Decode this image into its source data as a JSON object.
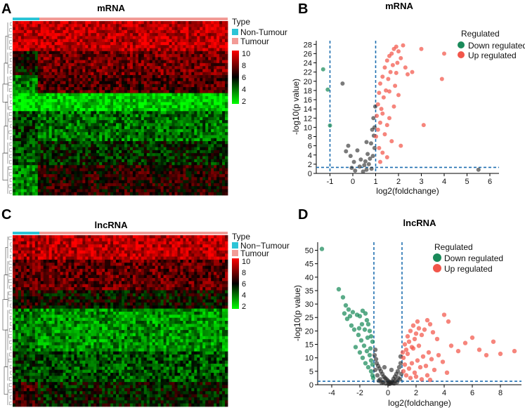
{
  "panel_letters": {
    "a": "A",
    "b": "B",
    "c": "C",
    "d": "D"
  },
  "colors": {
    "non_tumour": "#2cc4d6",
    "tumour": "#f29b96",
    "down": "#1a8a5a",
    "up": "#f2564a",
    "ns": "#222222",
    "threshold": "#1f6fb0"
  },
  "chart_data": [
    {
      "type": "heatmap",
      "panel": "A",
      "title": "mRNA",
      "legend_type_title": "Type",
      "legend_groups": [
        "Non-Tumour",
        "Tumour"
      ],
      "colorbar_ticks": [
        "10",
        "8",
        "6",
        "4",
        "2"
      ],
      "colorbar_range": [
        1,
        10
      ],
      "colorbar_colors": [
        "#ff0000",
        "#000000",
        "#00ff00"
      ],
      "n_non_tumour_columns": 9,
      "n_tumour_columns": 68,
      "row_blocks": [
        {
          "rows": 10,
          "non_tumour_level": 9.0,
          "tumour_level": 8.8
        },
        {
          "rows": 8,
          "non_tumour_level": 5.5,
          "tumour_level": 7.5
        },
        {
          "rows": 6,
          "non_tumour_level": 3.5,
          "tumour_level": 6.8
        },
        {
          "rows": 6,
          "non_tumour_level": 1.6,
          "tumour_level": 1.8
        },
        {
          "rows": 10,
          "non_tumour_level": 4.5,
          "tumour_level": 3.5
        },
        {
          "rows": 8,
          "non_tumour_level": 4.2,
          "tumour_level": 4.8
        },
        {
          "rows": 10,
          "non_tumour_level": 3.2,
          "tumour_level": 6.2
        }
      ]
    },
    {
      "type": "scatter",
      "panel": "B",
      "title": "mRNA",
      "xlabel": "log2(foldchange)",
      "ylabel": "-log10(p value)",
      "xlim": [
        -1.6,
        6.4
      ],
      "ylim": [
        0,
        28.8
      ],
      "xticks": [
        "-1",
        "0",
        "1",
        "2",
        "3",
        "4",
        "5",
        "6"
      ],
      "yticks": [
        "0",
        "2",
        "4",
        "6",
        "8",
        "10",
        "12",
        "14",
        "16",
        "18",
        "20",
        "22",
        "24",
        "26",
        "28"
      ],
      "thresholds": {
        "x": [
          -1,
          1
        ],
        "y": 1.3
      },
      "legend_title": "Regulated",
      "legend_items": [
        "Down regulated",
        "Up regulated"
      ],
      "series": [
        {
          "name": "Down regulated",
          "points": [
            [
              -1.3,
              22.6
            ],
            [
              -1.1,
              18.2
            ],
            [
              -1.0,
              10.4
            ]
          ]
        },
        {
          "name": "Not significant",
          "points": [
            [
              -0.45,
              19.5
            ],
            [
              -0.2,
              6.0
            ],
            [
              -0.3,
              4.8
            ],
            [
              -0.1,
              3.8
            ],
            [
              0.05,
              2.5
            ],
            [
              0.2,
              5.0
            ],
            [
              0.35,
              3.0
            ],
            [
              0.5,
              1.8
            ],
            [
              0.6,
              0.8
            ],
            [
              0.65,
              4.2
            ],
            [
              0.7,
              2.0
            ],
            [
              0.8,
              6.5
            ],
            [
              0.85,
              9.5
            ],
            [
              0.9,
              12.0
            ],
            [
              0.95,
              5.5
            ],
            [
              0.75,
              3.2
            ],
            [
              0.1,
              0.6
            ],
            [
              0.45,
              0.4
            ],
            [
              0.95,
              10.0
            ],
            [
              0.98,
              14.5
            ],
            [
              0.3,
              1.5
            ],
            [
              0.55,
              2.6
            ],
            [
              0.92,
              8.2
            ],
            [
              0.88,
              3.8
            ],
            [
              -0.05,
              1.2
            ],
            [
              0.6,
              6.8
            ],
            [
              0.82,
              1.0
            ],
            [
              5.5,
              0.8
            ]
          ]
        },
        {
          "name": "Up regulated",
          "points": [
            [
              1.02,
              8.0
            ],
            [
              1.05,
              12.5
            ],
            [
              1.1,
              15.0
            ],
            [
              1.15,
              17.5
            ],
            [
              1.2,
              19.5
            ],
            [
              1.25,
              14.0
            ],
            [
              1.3,
              21.0
            ],
            [
              1.35,
              16.5
            ],
            [
              1.4,
              23.0
            ],
            [
              1.45,
              18.0
            ],
            [
              1.5,
              24.5
            ],
            [
              1.55,
              20.5
            ],
            [
              1.6,
              25.5
            ],
            [
              1.65,
              22.0
            ],
            [
              1.7,
              26.0
            ],
            [
              1.75,
              23.5
            ],
            [
              1.8,
              27.0
            ],
            [
              1.85,
              19.0
            ],
            [
              1.9,
              27.5
            ],
            [
              1.95,
              24.0
            ],
            [
              2.0,
              26.5
            ],
            [
              2.1,
              25.0
            ],
            [
              2.2,
              27.8
            ],
            [
              2.3,
              23.0
            ],
            [
              2.4,
              21.5
            ],
            [
              1.2,
              11.0
            ],
            [
              1.3,
              13.0
            ],
            [
              1.5,
              10.5
            ],
            [
              1.1,
              9.5
            ],
            [
              1.4,
              8.5
            ],
            [
              1.6,
              12.0
            ],
            [
              1.8,
              14.5
            ],
            [
              2.0,
              17.0
            ],
            [
              2.1,
              6.0
            ],
            [
              1.7,
              7.0
            ],
            [
              1.3,
              4.5
            ],
            [
              1.5,
              3.5
            ],
            [
              1.2,
              2.5
            ],
            [
              2.6,
              22.0
            ],
            [
              3.0,
              27.0
            ],
            [
              3.1,
              10.5
            ],
            [
              3.9,
              20.5
            ],
            [
              4.0,
              26.0
            ],
            [
              1.15,
              5.5
            ],
            [
              1.6,
              17.8
            ],
            [
              1.9,
              21.8
            ]
          ]
        }
      ]
    },
    {
      "type": "heatmap",
      "panel": "C",
      "title": "lncRNA",
      "legend_type_title": "Type",
      "legend_groups": [
        "Non−Tumour",
        "Tumour"
      ],
      "colorbar_ticks": [
        "10",
        "8",
        "6",
        "4",
        "2"
      ],
      "colorbar_range": [
        1,
        10
      ],
      "colorbar_colors": [
        "#ff0000",
        "#000000",
        "#00ff00"
      ],
      "n_non_tumour_columns": 9,
      "n_tumour_columns": 68,
      "row_blocks": [
        {
          "rows": 8,
          "non_tumour_level": 8.5,
          "tumour_level": 8.8
        },
        {
          "rows": 10,
          "non_tumour_level": 7.0,
          "tumour_level": 7.2
        },
        {
          "rows": 6,
          "non_tumour_level": 6.0,
          "tumour_level": 5.5
        },
        {
          "rows": 14,
          "non_tumour_level": 3.5,
          "tumour_level": 3.0
        },
        {
          "rows": 10,
          "non_tumour_level": 4.5,
          "tumour_level": 4.0
        },
        {
          "rows": 8,
          "non_tumour_level": 6.5,
          "tumour_level": 5.2
        }
      ]
    },
    {
      "type": "scatter",
      "panel": "D",
      "title": "lncRNA",
      "xlabel": "log2(foldchange)",
      "ylabel": "-log10(p value)",
      "xlim": [
        -5,
        9.5
      ],
      "ylim": [
        0,
        53
      ],
      "xticks": [
        "-4",
        "-2",
        "0",
        "2",
        "4",
        "6",
        "8"
      ],
      "yticks": [
        "0",
        "5",
        "10",
        "15",
        "20",
        "25",
        "30",
        "35",
        "40",
        "45",
        "50"
      ],
      "thresholds": {
        "x": [
          -1,
          1
        ],
        "y": 1.3
      },
      "legend_title": "Regulated",
      "legend_items": [
        "Down regulated",
        "Up regulated"
      ],
      "series": [
        {
          "name": "Down regulated",
          "points": [
            [
              -4.7,
              50.5
            ],
            [
              -3.5,
              35.5
            ],
            [
              -3.2,
              32.5
            ],
            [
              -3.0,
              29.5
            ],
            [
              -2.8,
              28.0
            ],
            [
              -2.5,
              27.0
            ],
            [
              -2.2,
              26.0
            ],
            [
              -2.0,
              25.5
            ],
            [
              -1.8,
              27.5
            ],
            [
              -1.6,
              26.5
            ],
            [
              -1.5,
              24.0
            ],
            [
              -1.4,
              22.5
            ],
            [
              -1.3,
              20.0
            ],
            [
              -1.2,
              18.0
            ],
            [
              -1.1,
              16.0
            ],
            [
              -2.6,
              22.0
            ],
            [
              -2.4,
              20.5
            ],
            [
              -2.1,
              18.5
            ],
            [
              -1.9,
              16.5
            ],
            [
              -1.7,
              14.5
            ],
            [
              -1.5,
              12.5
            ],
            [
              -1.3,
              11.0
            ],
            [
              -1.2,
              9.0
            ],
            [
              -1.1,
              7.5
            ],
            [
              -2.3,
              14.0
            ],
            [
              -2.0,
              12.0
            ],
            [
              -1.8,
              10.0
            ],
            [
              -1.6,
              8.0
            ],
            [
              -1.4,
              6.5
            ],
            [
              -1.2,
              5.0
            ],
            [
              -1.1,
              3.5
            ],
            [
              -2.9,
              24.5
            ],
            [
              -2.7,
              25.5
            ],
            [
              -3.1,
              26.5
            ],
            [
              -1.05,
              2.5
            ],
            [
              -1.25,
              13.5
            ],
            [
              -1.45,
              17.5
            ],
            [
              -1.65,
              20.5
            ],
            [
              -1.85,
              22.5
            ],
            [
              -2.05,
              21.0
            ]
          ]
        },
        {
          "name": "Not significant",
          "points": [
            [
              -0.95,
              11.0
            ],
            [
              -0.85,
              9.5
            ],
            [
              -0.8,
              8.0
            ],
            [
              -0.7,
              7.0
            ],
            [
              -0.6,
              6.0
            ],
            [
              -0.5,
              5.0
            ],
            [
              -0.4,
              4.0
            ],
            [
              -0.3,
              3.0
            ],
            [
              -0.2,
              2.5
            ],
            [
              -0.1,
              2.0
            ],
            [
              0.0,
              1.5
            ],
            [
              0.1,
              1.0
            ],
            [
              0.2,
              0.8
            ],
            [
              0.3,
              1.2
            ],
            [
              0.4,
              2.2
            ],
            [
              0.5,
              3.0
            ],
            [
              0.6,
              4.0
            ],
            [
              0.7,
              5.0
            ],
            [
              0.8,
              6.5
            ],
            [
              0.9,
              8.0
            ],
            [
              -0.9,
              5.5
            ],
            [
              -0.75,
              3.5
            ],
            [
              -0.55,
              2.0
            ],
            [
              -0.35,
              1.0
            ],
            [
              -0.15,
              0.5
            ],
            [
              0.15,
              0.4
            ],
            [
              0.35,
              0.6
            ],
            [
              0.55,
              1.5
            ],
            [
              0.75,
              2.5
            ],
            [
              0.95,
              4.0
            ],
            [
              -0.65,
              1.5
            ],
            [
              -0.45,
              0.8
            ],
            [
              0.05,
              0.3
            ],
            [
              0.45,
              0.5
            ],
            [
              0.65,
              1.0
            ],
            [
              0.85,
              2.0
            ],
            [
              -0.25,
              6.5
            ],
            [
              0.25,
              5.5
            ],
            [
              -0.9,
              13.0
            ],
            [
              0.9,
              10.5
            ]
          ]
        },
        {
          "name": "Up regulated",
          "points": [
            [
              1.05,
              12.0
            ],
            [
              1.1,
              10.0
            ],
            [
              1.2,
              15.0
            ],
            [
              1.3,
              13.0
            ],
            [
              1.4,
              18.0
            ],
            [
              1.5,
              16.0
            ],
            [
              1.6,
              20.0
            ],
            [
              1.7,
              14.0
            ],
            [
              1.8,
              22.0
            ],
            [
              1.9,
              17.0
            ],
            [
              2.0,
              19.0
            ],
            [
              2.1,
              23.5
            ],
            [
              2.2,
              21.0
            ],
            [
              2.4,
              18.5
            ],
            [
              2.6,
              20.5
            ],
            [
              2.8,
              24.0
            ],
            [
              3.0,
              22.5
            ],
            [
              3.2,
              19.5
            ],
            [
              3.5,
              17.0
            ],
            [
              4.0,
              26.0
            ],
            [
              4.3,
              23.5
            ],
            [
              4.5,
              14.5
            ],
            [
              5.0,
              12.5
            ],
            [
              5.5,
              15.5
            ],
            [
              6.0,
              17.5
            ],
            [
              6.5,
              13.0
            ],
            [
              7.0,
              11.0
            ],
            [
              7.5,
              16.0
            ],
            [
              8.0,
              11.5
            ],
            [
              9.0,
              12.5
            ],
            [
              1.1,
              5.0
            ],
            [
              1.2,
              7.5
            ],
            [
              1.3,
              3.5
            ],
            [
              1.5,
              6.0
            ],
            [
              1.7,
              8.0
            ],
            [
              1.9,
              4.5
            ],
            [
              2.1,
              9.0
            ],
            [
              2.3,
              6.5
            ],
            [
              2.5,
              10.5
            ],
            [
              2.7,
              7.0
            ],
            [
              2.9,
              12.0
            ],
            [
              3.1,
              9.5
            ],
            [
              3.3,
              5.5
            ],
            [
              3.6,
              11.0
            ],
            [
              3.9,
              8.5
            ],
            [
              4.2,
              4.5
            ],
            [
              1.6,
              2.5
            ],
            [
              2.0,
              3.0
            ],
            [
              2.4,
              2.0
            ],
            [
              2.8,
              3.5
            ],
            [
              3.0,
              1.8
            ],
            [
              1.4,
              11.5
            ],
            [
              1.8,
              13.5
            ],
            [
              2.2,
              14.5
            ]
          ]
        }
      ]
    }
  ]
}
